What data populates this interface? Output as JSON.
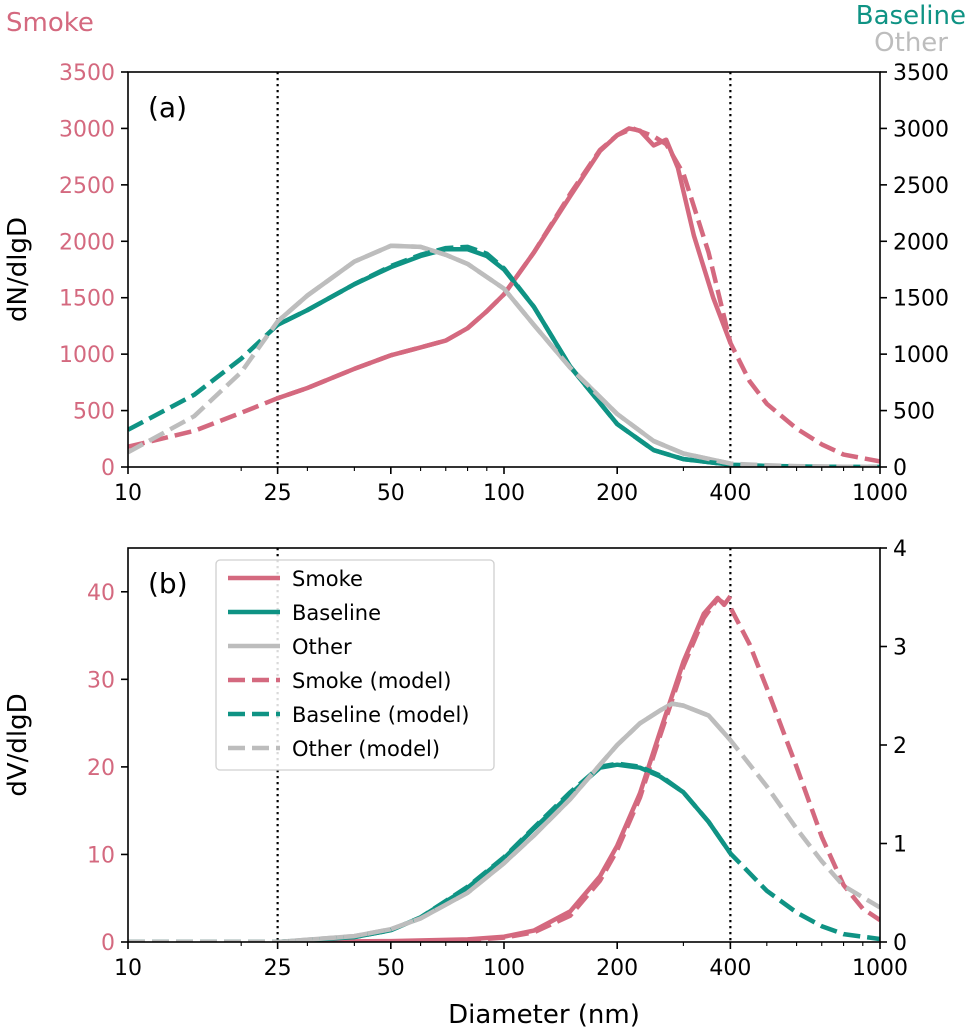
{
  "colors": {
    "smoke": "#d4697f",
    "baseline": "#0f9384",
    "other": "#bdbdbd",
    "axis": "#000000"
  },
  "figure": {
    "left_axis_title": "Smoke",
    "right_axis_titles": [
      "Baseline",
      "Other"
    ],
    "xlabel": "Diameter (nm)"
  },
  "chart_data": [
    {
      "type": "line",
      "panel_label": "(a)",
      "ylabel": "dN/dlgD",
      "xscale": "log",
      "xlim": [
        10,
        1000
      ],
      "xticks": [
        10,
        25,
        50,
        100,
        200,
        400,
        1000
      ],
      "ylim_left": [
        0,
        3500
      ],
      "ylim_right": [
        0,
        3500
      ],
      "yticks_left": [
        0,
        500,
        1000,
        1500,
        2000,
        2500,
        3000,
        3500
      ],
      "yticks_right": [
        0,
        500,
        1000,
        1500,
        2000,
        2500,
        3000,
        3500
      ],
      "vertical_lines": [
        25,
        400
      ],
      "series": [
        {
          "key": "smoke",
          "style": "solid",
          "axis": "left",
          "x": [
            25,
            30,
            40,
            50,
            60,
            70,
            80,
            90,
            100,
            120,
            150,
            180,
            200,
            215,
            230,
            250,
            270,
            290,
            320,
            360,
            400
          ],
          "y": [
            610,
            700,
            870,
            990,
            1060,
            1120,
            1230,
            1380,
            1530,
            1900,
            2400,
            2800,
            2940,
            3000,
            2980,
            2850,
            2900,
            2650,
            2050,
            1500,
            1100
          ]
        },
        {
          "key": "baseline",
          "style": "solid",
          "axis": "right",
          "x": [
            25,
            30,
            40,
            50,
            60,
            70,
            80,
            90,
            100,
            120,
            150,
            200,
            250,
            300,
            400
          ],
          "y": [
            1260,
            1390,
            1620,
            1770,
            1870,
            1930,
            1930,
            1870,
            1750,
            1420,
            890,
            380,
            150,
            70,
            20
          ]
        },
        {
          "key": "other",
          "style": "solid",
          "axis": "right",
          "x": [
            25,
            30,
            40,
            50,
            60,
            70,
            80,
            100,
            120,
            150,
            200,
            250,
            300,
            400
          ],
          "y": [
            1290,
            1520,
            1820,
            1960,
            1950,
            1880,
            1800,
            1580,
            1260,
            880,
            470,
            230,
            120,
            30
          ]
        },
        {
          "key": "smoke",
          "style": "dashed",
          "axis": "left",
          "x": [
            10,
            15,
            20,
            25,
            30,
            40,
            50,
            60,
            70,
            80,
            90,
            100,
            120,
            150,
            180,
            200,
            220,
            250,
            270,
            300,
            350,
            400,
            450,
            500,
            600,
            700,
            800,
            1000
          ],
          "y": [
            180,
            320,
            480,
            610,
            700,
            870,
            990,
            1060,
            1120,
            1230,
            1380,
            1530,
            1900,
            2420,
            2810,
            2940,
            3000,
            2930,
            2860,
            2600,
            1900,
            1100,
            760,
            560,
            340,
            200,
            110,
            50
          ]
        },
        {
          "key": "baseline",
          "style": "dashed",
          "axis": "right",
          "x": [
            10,
            15,
            20,
            25,
            30,
            40,
            50,
            60,
            70,
            80,
            90,
            100,
            120,
            150,
            200,
            250,
            300,
            400,
            500,
            600,
            700,
            800,
            1000
          ],
          "y": [
            330,
            640,
            960,
            1260,
            1390,
            1620,
            1780,
            1880,
            1940,
            1950,
            1890,
            1760,
            1420,
            890,
            380,
            150,
            70,
            20,
            10,
            5,
            3,
            2,
            1
          ]
        },
        {
          "key": "other",
          "style": "dashed",
          "axis": "right",
          "x": [
            10,
            15,
            20,
            25,
            30,
            40,
            50,
            60,
            70,
            80,
            100,
            120,
            150,
            200,
            250,
            300,
            400,
            500,
            600,
            700,
            800,
            1000
          ],
          "y": [
            130,
            450,
            840,
            1290,
            1520,
            1820,
            1960,
            1950,
            1880,
            1800,
            1580,
            1260,
            880,
            470,
            230,
            120,
            30,
            15,
            8,
            5,
            3,
            1
          ]
        }
      ]
    },
    {
      "type": "line",
      "panel_label": "(b)",
      "ylabel": "dV/dlgD",
      "xscale": "log",
      "xlim": [
        10,
        1000
      ],
      "xticks": [
        10,
        25,
        50,
        100,
        200,
        400,
        1000
      ],
      "ylim_left": [
        0,
        45
      ],
      "ylim_right": [
        0,
        4
      ],
      "yticks_left": [
        0,
        10,
        20,
        30,
        40
      ],
      "yticks_right": [
        0,
        1,
        2,
        3,
        4
      ],
      "vertical_lines": [
        25,
        400
      ],
      "legend": {
        "placement": "upper-left",
        "entries": [
          {
            "label": "Smoke",
            "key": "smoke",
            "style": "solid"
          },
          {
            "label": "Baseline",
            "key": "baseline",
            "style": "solid"
          },
          {
            "label": "Other",
            "key": "other",
            "style": "solid"
          },
          {
            "label": "Smoke (model)",
            "key": "smoke",
            "style": "dashed"
          },
          {
            "label": "Baseline (model)",
            "key": "baseline",
            "style": "dashed"
          },
          {
            "label": "Other (model)",
            "key": "other",
            "style": "dashed"
          }
        ]
      },
      "series": [
        {
          "key": "smoke",
          "style": "solid",
          "axis": "left",
          "x": [
            25,
            50,
            80,
            100,
            120,
            150,
            180,
            200,
            230,
            260,
            300,
            340,
            370,
            385,
            400
          ],
          "y": [
            0,
            0.1,
            0.3,
            0.6,
            1.3,
            3.5,
            7.5,
            11,
            17,
            24,
            32,
            37.5,
            39.3,
            38.5,
            39.5
          ]
        },
        {
          "key": "baseline",
          "style": "solid",
          "axis": "right",
          "x": [
            25,
            40,
            50,
            60,
            80,
            100,
            120,
            150,
            180,
            200,
            230,
            260,
            300,
            350,
            400
          ],
          "y": [
            0,
            0.05,
            0.12,
            0.25,
            0.55,
            0.85,
            1.15,
            1.5,
            1.77,
            1.8,
            1.77,
            1.68,
            1.52,
            1.22,
            0.9
          ]
        },
        {
          "key": "other",
          "style": "solid",
          "axis": "right",
          "x": [
            25,
            40,
            50,
            60,
            80,
            100,
            120,
            150,
            180,
            200,
            230,
            260,
            280,
            300,
            350,
            400
          ],
          "y": [
            0,
            0.06,
            0.13,
            0.24,
            0.5,
            0.8,
            1.08,
            1.45,
            1.8,
            2.0,
            2.22,
            2.35,
            2.42,
            2.4,
            2.3,
            2.05
          ]
        },
        {
          "key": "smoke",
          "style": "dashed",
          "axis": "left",
          "x": [
            10,
            25,
            50,
            80,
            100,
            120,
            150,
            180,
            200,
            230,
            260,
            300,
            340,
            370,
            400,
            450,
            500,
            600,
            700,
            800,
            900,
            1000
          ],
          "y": [
            0,
            0,
            0.05,
            0.2,
            0.5,
            1.1,
            3.0,
            7.0,
            10.5,
            16.5,
            23.5,
            31.5,
            37,
            39.2,
            38.2,
            34,
            29,
            20,
            12,
            6.5,
            3.8,
            2.5
          ]
        },
        {
          "key": "baseline",
          "style": "dashed",
          "axis": "right",
          "x": [
            10,
            25,
            40,
            50,
            60,
            80,
            100,
            120,
            150,
            180,
            200,
            230,
            260,
            300,
            350,
            400,
            500,
            600,
            700,
            800,
            1000
          ],
          "y": [
            0,
            0,
            0.05,
            0.12,
            0.25,
            0.56,
            0.86,
            1.16,
            1.52,
            1.78,
            1.81,
            1.78,
            1.69,
            1.52,
            1.22,
            0.9,
            0.52,
            0.3,
            0.16,
            0.08,
            0.03
          ]
        },
        {
          "key": "other",
          "style": "dashed",
          "axis": "right",
          "x": [
            10,
            25,
            40,
            50,
            60,
            80,
            100,
            120,
            150,
            180,
            200,
            230,
            260,
            280,
            300,
            350,
            400,
            500,
            600,
            700,
            800,
            1000
          ],
          "y": [
            0,
            0,
            0.06,
            0.13,
            0.24,
            0.5,
            0.8,
            1.08,
            1.45,
            1.8,
            2.0,
            2.22,
            2.35,
            2.42,
            2.4,
            2.3,
            2.05,
            1.58,
            1.15,
            0.82,
            0.57,
            0.35
          ]
        }
      ]
    }
  ]
}
